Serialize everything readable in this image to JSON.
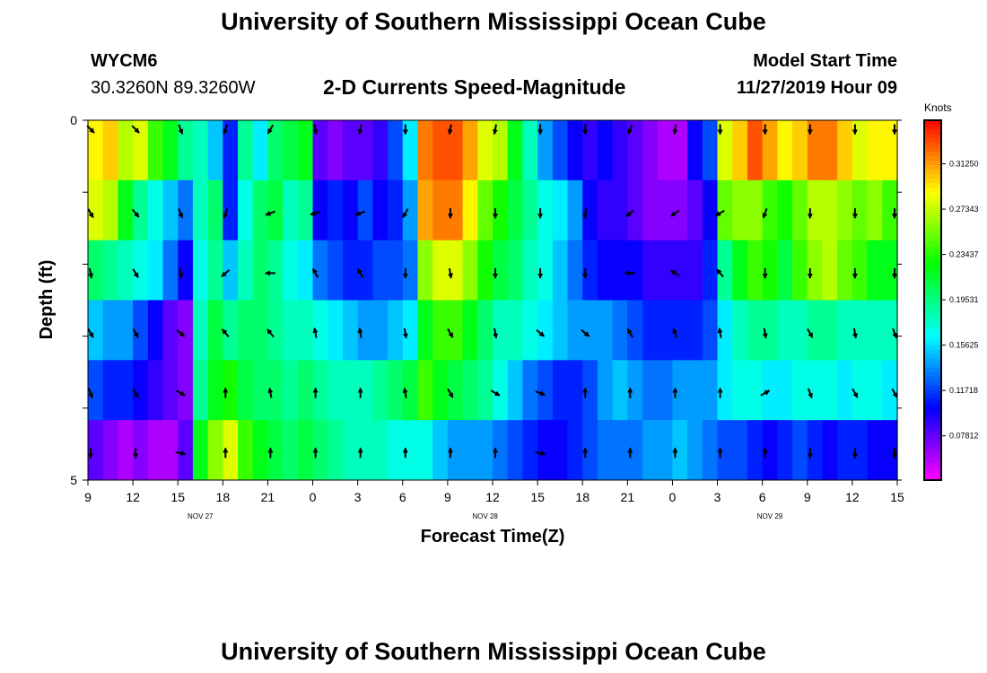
{
  "header": {
    "title": "University of Southern Mississippi Ocean Cube",
    "station": "WYCM6",
    "coords": "30.3260N 89.3260W",
    "subtitle": "2-D Currents Speed-Magnitude",
    "model_start_label": "Model Start Time",
    "model_start_value": "11/27/2019 Hour 09"
  },
  "footer": {
    "title": "University of Southern Mississippi Ocean Cube"
  },
  "chart_data": {
    "type": "heatmap",
    "xlabel": "Forecast Time(Z)",
    "ylabel": "Depth (ft)",
    "colorbar_unit": "Knots",
    "colorbar_ticks": [
      "0.31250",
      "0.27343",
      "0.23437",
      "0.19531",
      "0.15625",
      "0.11718",
      "0.07812"
    ],
    "colorbar_tick_values": [
      0.3125,
      0.27343,
      0.23437,
      0.19531,
      0.15625,
      0.11718,
      0.07812
    ],
    "colorbar_range": [
      0.04,
      0.35
    ],
    "x_tick_labels": [
      "9",
      "12",
      "15",
      "18",
      "21",
      "0",
      "3",
      "6",
      "9",
      "12",
      "15",
      "18",
      "21",
      "0",
      "3",
      "6",
      "9",
      "12",
      "15"
    ],
    "date_labels": [
      {
        "text": "NOV 27",
        "hour_offset": 7.5
      },
      {
        "text": "NOV 28",
        "hour_offset": 26.5
      },
      {
        "text": "NOV 29",
        "hour_offset": 45.5
      }
    ],
    "x_range_hours": [
      0,
      54
    ],
    "y_tick_labels": [
      "0",
      "",
      "",
      "",
      "",
      "5"
    ],
    "y_range_ft": [
      0,
      5
    ],
    "depth_levels": [
      0,
      1,
      2,
      3,
      4,
      5
    ],
    "speed_knots": [
      [
        0.29,
        0.3,
        0.27,
        0.28,
        0.24,
        0.22,
        0.19,
        0.18,
        0.15,
        0.11,
        0.19,
        0.16,
        0.2,
        0.21,
        0.22,
        0.08,
        0.07,
        0.08,
        0.08,
        0.09,
        0.12,
        0.16,
        0.32,
        0.33,
        0.33,
        0.31,
        0.28,
        0.27,
        0.22,
        0.18,
        0.14,
        0.12,
        0.1,
        0.09,
        0.1,
        0.09,
        0.08,
        0.07,
        0.06,
        0.06,
        0.1,
        0.12,
        0.28,
        0.3,
        0.33,
        0.31,
        0.29,
        0.3,
        0.32,
        0.32,
        0.3,
        0.28,
        0.29,
        0.29
      ],
      [
        0.28,
        0.27,
        0.22,
        0.19,
        0.17,
        0.15,
        0.13,
        0.18,
        0.2,
        0.11,
        0.17,
        0.2,
        0.21,
        0.18,
        0.19,
        0.1,
        0.11,
        0.1,
        0.12,
        0.1,
        0.11,
        0.14,
        0.31,
        0.32,
        0.32,
        0.29,
        0.25,
        0.23,
        0.21,
        0.19,
        0.17,
        0.16,
        0.14,
        0.1,
        0.09,
        0.09,
        0.08,
        0.07,
        0.07,
        0.07,
        0.08,
        0.1,
        0.25,
        0.26,
        0.26,
        0.24,
        0.23,
        0.25,
        0.27,
        0.27,
        0.26,
        0.25,
        0.26,
        0.24
      ],
      [
        0.2,
        0.19,
        0.18,
        0.17,
        0.16,
        0.13,
        0.1,
        0.17,
        0.19,
        0.15,
        0.18,
        0.2,
        0.19,
        0.17,
        0.16,
        0.13,
        0.12,
        0.11,
        0.11,
        0.12,
        0.12,
        0.13,
        0.26,
        0.28,
        0.28,
        0.26,
        0.23,
        0.21,
        0.2,
        0.18,
        0.17,
        0.15,
        0.13,
        0.11,
        0.1,
        0.1,
        0.1,
        0.09,
        0.09,
        0.09,
        0.09,
        0.11,
        0.19,
        0.22,
        0.24,
        0.23,
        0.21,
        0.24,
        0.26,
        0.27,
        0.25,
        0.24,
        0.22,
        0.22
      ],
      [
        0.15,
        0.14,
        0.14,
        0.12,
        0.1,
        0.08,
        0.07,
        0.18,
        0.21,
        0.19,
        0.2,
        0.2,
        0.19,
        0.18,
        0.18,
        0.17,
        0.16,
        0.15,
        0.14,
        0.14,
        0.15,
        0.16,
        0.22,
        0.24,
        0.24,
        0.22,
        0.2,
        0.18,
        0.18,
        0.17,
        0.16,
        0.15,
        0.14,
        0.14,
        0.14,
        0.13,
        0.12,
        0.11,
        0.11,
        0.11,
        0.11,
        0.12,
        0.16,
        0.18,
        0.19,
        0.19,
        0.18,
        0.18,
        0.19,
        0.19,
        0.18,
        0.18,
        0.18,
        0.18
      ],
      [
        0.12,
        0.11,
        0.11,
        0.1,
        0.09,
        0.08,
        0.07,
        0.19,
        0.22,
        0.23,
        0.21,
        0.2,
        0.2,
        0.19,
        0.2,
        0.19,
        0.18,
        0.18,
        0.18,
        0.19,
        0.2,
        0.21,
        0.24,
        0.22,
        0.21,
        0.2,
        0.19,
        0.17,
        0.15,
        0.13,
        0.12,
        0.11,
        0.11,
        0.12,
        0.14,
        0.15,
        0.14,
        0.13,
        0.13,
        0.14,
        0.14,
        0.14,
        0.16,
        0.17,
        0.17,
        0.16,
        0.16,
        0.17,
        0.17,
        0.17,
        0.16,
        0.17,
        0.17,
        0.16
      ],
      [
        0.08,
        0.07,
        0.06,
        0.07,
        0.06,
        0.06,
        0.08,
        0.22,
        0.26,
        0.28,
        0.24,
        0.22,
        0.21,
        0.2,
        0.21,
        0.2,
        0.19,
        0.18,
        0.18,
        0.18,
        0.17,
        0.17,
        0.17,
        0.15,
        0.14,
        0.14,
        0.14,
        0.13,
        0.12,
        0.11,
        0.1,
        0.1,
        0.11,
        0.12,
        0.13,
        0.13,
        0.13,
        0.14,
        0.14,
        0.15,
        0.14,
        0.13,
        0.12,
        0.12,
        0.11,
        0.1,
        0.11,
        0.12,
        0.11,
        0.1,
        0.11,
        0.11,
        0.1,
        0.1
      ]
    ],
    "vector_times_hours": [
      0,
      3,
      6,
      9,
      12,
      15,
      18,
      21,
      24,
      27,
      30,
      33,
      36,
      39,
      42,
      45,
      48,
      51,
      54
    ],
    "vector_direction_deg": [
      [
        135,
        135,
        160,
        200,
        210,
        170,
        190,
        180,
        190,
        190,
        180,
        180,
        200,
        190,
        180,
        180,
        180,
        180,
        180
      ],
      [
        150,
        140,
        160,
        200,
        250,
        255,
        250,
        210,
        180,
        180,
        180,
        190,
        230,
        235,
        240,
        200,
        180,
        180,
        180
      ],
      [
        170,
        150,
        170,
        230,
        270,
        330,
        330,
        180,
        170,
        180,
        180,
        180,
        270,
        300,
        320,
        180,
        180,
        180,
        180
      ],
      [
        150,
        150,
        130,
        320,
        320,
        350,
        350,
        170,
        150,
        170,
        130,
        130,
        330,
        340,
        350,
        170,
        150,
        170,
        160
      ],
      [
        160,
        150,
        120,
        0,
        350,
        0,
        0,
        350,
        150,
        120,
        110,
        0,
        0,
        0,
        0,
        60,
        160,
        150,
        150
      ],
      [
        180,
        180,
        100,
        0,
        0,
        0,
        0,
        0,
        0,
        0,
        100,
        0,
        0,
        0,
        0,
        0,
        180,
        180,
        180
      ]
    ]
  }
}
